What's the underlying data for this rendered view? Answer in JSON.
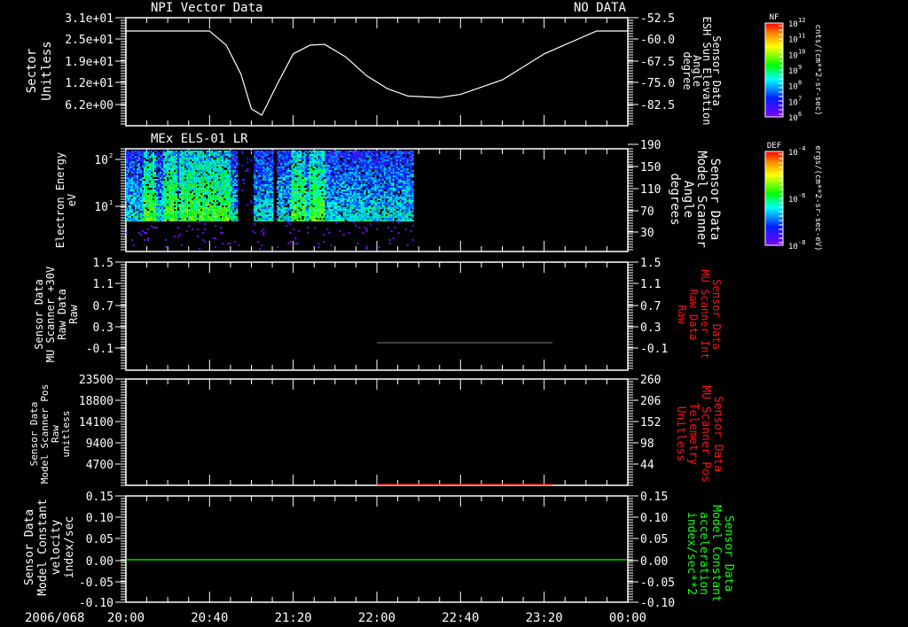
{
  "colors": {
    "background": "#000000",
    "axis": "#ffffff",
    "red_label": "#ff1010",
    "green_label": "#10ff10",
    "panel3_line": "#808080",
    "panel4_line": "#ff2020",
    "panel5_line": "#00ff00"
  },
  "time_axis": {
    "date_label": "2006/068",
    "tick_labels": [
      "20:00",
      "20:40",
      "21:20",
      "22:00",
      "22:40",
      "23:20",
      "00:00"
    ],
    "range_minutes": [
      0,
      240
    ]
  },
  "chart_data": [
    {
      "type": "line",
      "title": "NPI Vector Data",
      "title_right": "NO DATA",
      "ylabel_left": [
        "Sector",
        "Unitless"
      ],
      "yticks_left": [
        "3.1e+01",
        "2.5e+01",
        "1.9e+01",
        "1.2e+01",
        "6.2e+00"
      ],
      "ylabel_right": [
        "Sensor Data",
        "ESH Sun Elevation",
        "Angle",
        "degree"
      ],
      "yticks_right": [
        "-52.5",
        "-60.0",
        "-67.5",
        "-75.0",
        "-82.5"
      ],
      "ylim_right": [
        -82.5,
        -52.5
      ],
      "series": [
        {
          "name": "ESH Sun Elevation Angle",
          "x_minutes": [
            0,
            40,
            48,
            55,
            60,
            65,
            72,
            80,
            88,
            95,
            105,
            115,
            125,
            135,
            150,
            160,
            180,
            200,
            225,
            240
          ],
          "values": [
            -57.1,
            -57.1,
            -62,
            -72,
            -84,
            -86.2,
            -76,
            -65,
            -62,
            -61.7,
            -66,
            -72.5,
            -77,
            -79.6,
            -80.1,
            -79,
            -74,
            -65,
            -57.1,
            -57.1
          ]
        }
      ],
      "flat_until_minutes": 209
    },
    {
      "type": "heatmap",
      "title": "MEx ELS-01 LR",
      "ylabel_left": [
        "Electron Energy",
        "eV"
      ],
      "yticks_left": [
        {
          "base": "10",
          "exp": "2",
          "value": 100
        },
        {
          "base": "10",
          "exp": "1",
          "value": 10
        }
      ],
      "ylim_log": [
        1.5,
        160
      ],
      "ylabel_right": [
        "Sensor Data",
        "Model Scanner",
        "Angle",
        "degrees"
      ],
      "yticks_right": [
        "190",
        "150",
        "110",
        "70",
        "30"
      ],
      "data_time_range_minutes": [
        0,
        137
      ],
      "gaps_minutes": [
        [
          53,
          60.5
        ],
        [
          70,
          72
        ]
      ],
      "enhanced_intervals_minutes": [
        [
          8,
          14
        ],
        [
          17,
          24
        ],
        [
          25,
          50
        ],
        [
          79,
          85
        ],
        [
          87,
          95
        ]
      ],
      "low_energy_cutoff_eV": 5
    },
    {
      "type": "line",
      "ylabel_left": [
        "Sensor Data",
        "MU Scanner +30V",
        "Raw Data",
        "Raw"
      ],
      "yticks_left": [
        "1.5",
        "1.1",
        "0.7",
        "0.3",
        "-0.1"
      ],
      "ylabel_right": [
        "Sensor Data",
        "MU Scanner Int",
        "Raw Data",
        "Raw"
      ],
      "yticks_right": [
        "1.5",
        "1.1",
        "0.7",
        "0.3",
        "-0.1"
      ],
      "ylim": [
        -0.35,
        1.5
      ],
      "series": [
        {
          "name": "MU Scanner Int",
          "x_minutes": [
            120,
            204
          ],
          "values": [
            0.0,
            0.0
          ]
        }
      ]
    },
    {
      "type": "line",
      "ylabel_left": [
        "Sensor Data",
        "Model Scanner Pos",
        "Raw",
        "unitless"
      ],
      "yticks_left": [
        "23500",
        "18800",
        "14100",
        "9400",
        "4700"
      ],
      "ylabel_right": [
        "Sensor Data",
        "MU Scanner Pos",
        "Telemetry",
        "Unitless"
      ],
      "yticks_right": [
        "260",
        "206",
        "152",
        "98",
        "44"
      ],
      "ylim_right": [
        0,
        260
      ],
      "series": [
        {
          "name": "MU Scanner Pos Telemetry",
          "x_minutes": [
            120,
            204
          ],
          "values": [
            2,
            2
          ]
        }
      ]
    },
    {
      "type": "line",
      "ylabel_left": [
        "Sensor Data",
        "Model Constant",
        "velocity",
        "index/sec"
      ],
      "yticks_left": [
        "0.15",
        "0.10",
        "0.05",
        "0.00",
        "-0.05",
        "-0.10"
      ],
      "ylabel_right": [
        "Sensor Data",
        "Model Constant",
        "acceleration",
        "index/sec**2"
      ],
      "yticks_right": [
        "0.15",
        "0.10",
        "0.05",
        "0.00",
        "-0.05",
        "-0.10"
      ],
      "ylim": [
        -0.1,
        0.15
      ],
      "series": [
        {
          "name": "Model Constant velocity",
          "x_minutes": [
            0,
            240
          ],
          "values": [
            0,
            0
          ]
        }
      ]
    }
  ],
  "colorbars": [
    {
      "label": "NF",
      "ticks": [
        {
          "b": "10",
          "e": "12"
        },
        {
          "b": "10",
          "e": "11"
        },
        {
          "b": "10",
          "e": "10"
        },
        {
          "b": "10",
          "e": "9"
        },
        {
          "b": "10",
          "e": "8"
        },
        {
          "b": "10",
          "e": "7"
        },
        {
          "b": "10",
          "e": "6"
        }
      ],
      "units": "cnts/(cm**2-sr-sec)"
    },
    {
      "label": "DEF",
      "ticks": [
        {
          "b": "10",
          "e": "-4"
        },
        {
          "b": "10",
          "e": "-6"
        },
        {
          "b": "10",
          "e": "-8"
        }
      ],
      "units": "ergs/(cm**2-sr-sec-eV)"
    }
  ]
}
